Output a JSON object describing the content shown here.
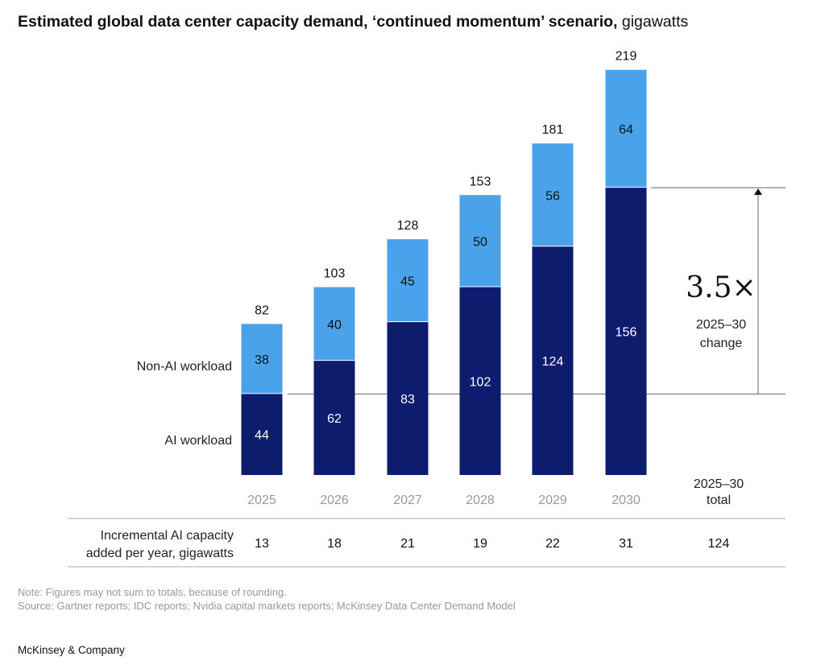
{
  "title_bold": "Estimated global data center capacity demand, ‘continued momentum’ scenario,",
  "title_unit": "gigawatts",
  "chart_data": {
    "type": "bar",
    "stacked": true,
    "categories": [
      "2025",
      "2026",
      "2027",
      "2028",
      "2029",
      "2030"
    ],
    "series": [
      {
        "name": "AI workload",
        "values": [
          44,
          62,
          83,
          102,
          124,
          156
        ],
        "color": "#0e1c6e"
      },
      {
        "name": "Non-AI workload",
        "values": [
          38,
          40,
          45,
          50,
          56,
          64
        ],
        "color": "#4aa3ea"
      }
    ],
    "totals": [
      82,
      103,
      128,
      153,
      181,
      219
    ],
    "annotation": {
      "value": "3.5×",
      "label_line1": "2025–30",
      "label_line2": "change"
    },
    "table": {
      "row_label_line1": "Incremental AI capacity",
      "row_label_line2": "added per year, gigawatts",
      "values": [
        13,
        18,
        21,
        19,
        22,
        31
      ],
      "total_header_line1": "2025–30",
      "total_header_line2": "total",
      "total": 124
    }
  },
  "note": "Note: Figures may not sum to totals, because of rounding.",
  "source": "Source: Gartner reports; IDC reports; Nvidia capital markets reports; McKinsey Data Center Demand Model",
  "brand": "McKinsey & Company"
}
